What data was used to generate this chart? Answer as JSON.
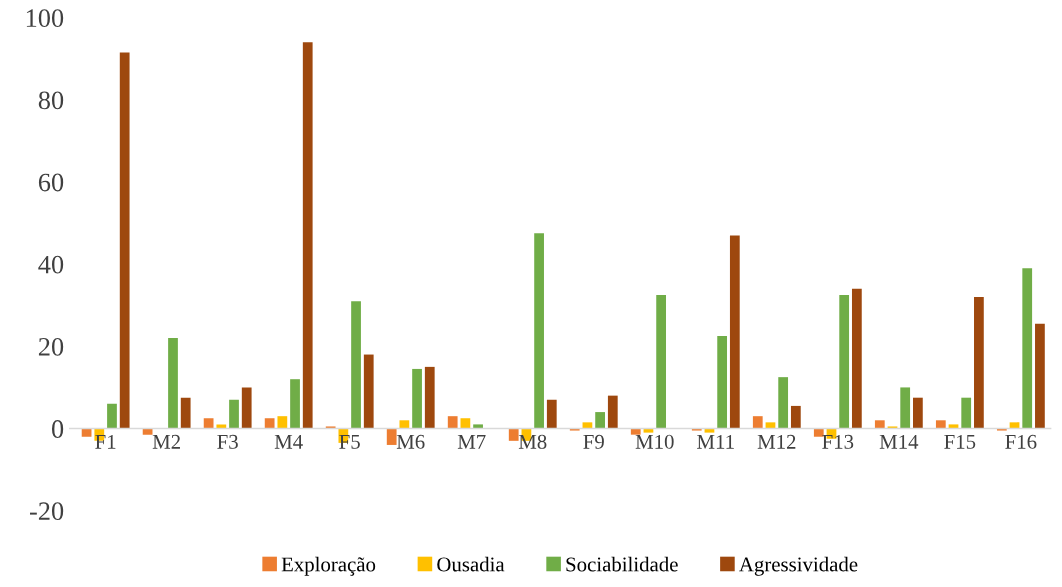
{
  "chart_data": {
    "type": "bar",
    "categories": [
      "F1",
      "M2",
      "F3",
      "M4",
      "F5",
      "M6",
      "M7",
      "M8",
      "F9",
      "M10",
      "M11",
      "M12",
      "F13",
      "M14",
      "F15",
      "F16"
    ],
    "series": [
      {
        "name": "Exploração",
        "color": "#ed7d31",
        "values": [
          -2,
          -1.5,
          2.5,
          2.5,
          0.5,
          -4,
          3,
          -3,
          -0.5,
          -1.5,
          -0.5,
          3,
          -2,
          2,
          2,
          -0.5
        ]
      },
      {
        "name": "Ousadia",
        "color": "#ffc000",
        "values": [
          -3,
          0,
          1,
          3,
          -3.5,
          2,
          2.5,
          -3,
          1.5,
          -1,
          -1,
          1.5,
          -2.5,
          0.5,
          1,
          1.5
        ]
      },
      {
        "name": "Sociabilidade",
        "color": "#70ad47",
        "values": [
          6,
          22,
          7,
          12,
          31,
          14.5,
          1,
          47.5,
          4,
          32.5,
          22.5,
          12.5,
          32.5,
          10,
          7.5,
          39
        ]
      },
      {
        "name": "Agressividade",
        "color": "#9e480e",
        "values": [
          91.5,
          7.5,
          10,
          94,
          18,
          15,
          0,
          7,
          8,
          0,
          47,
          5.5,
          34,
          7.5,
          32,
          25.5
        ]
      }
    ],
    "ylim": [
      -20,
      100
    ],
    "yticks": [
      -20,
      0,
      20,
      40,
      60,
      80,
      100
    ],
    "grid": false,
    "legend": "bottom"
  }
}
